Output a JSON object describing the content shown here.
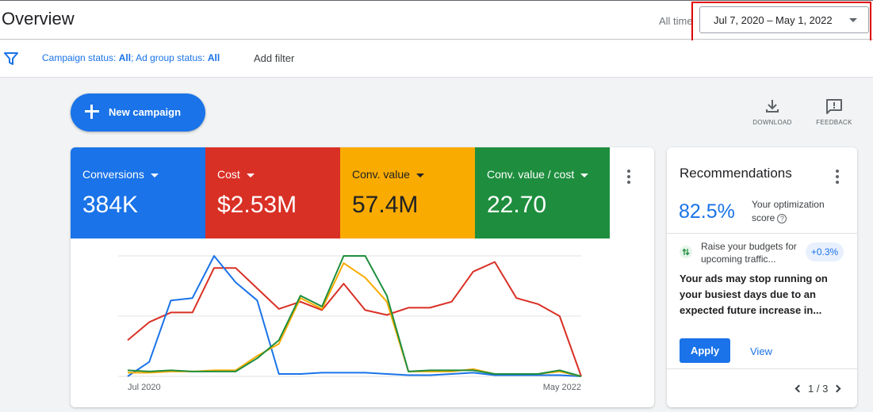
{
  "header": {
    "title": "Overview",
    "all_time_label": "All time",
    "date_range": "Jul 7, 2020 – May 1, 2022"
  },
  "filters": {
    "campaign_status_label": "Campaign status:",
    "campaign_status_value": "All",
    "separator": ";",
    "ad_group_status_label": "Ad group status:",
    "ad_group_status_value": "All",
    "add_filter": "Add filter"
  },
  "actions": {
    "new_campaign": "New campaign",
    "download": "DOWNLOAD",
    "feedback": "FEEDBACK"
  },
  "metrics": [
    {
      "label": "Conversions",
      "value": "384K",
      "color": "#1a73e8"
    },
    {
      "label": "Cost",
      "value": "$2.53M",
      "color": "#d93025"
    },
    {
      "label": "Conv. value",
      "value": "57.4M",
      "color": "#f9ab00"
    },
    {
      "label": "Conv. value / cost",
      "value": "22.70",
      "color": "#1e8e3e"
    }
  ],
  "chart_data": {
    "type": "line",
    "x_tick_labels": [
      "Jul 2020",
      "May 2022"
    ],
    "ylim": [
      0,
      100
    ],
    "grid": true,
    "series": [
      {
        "color": "#d93025",
        "values": [
          30,
          45,
          53,
          53,
          90,
          90,
          73,
          56,
          62,
          55,
          77,
          55,
          51,
          57,
          57,
          62,
          87,
          95,
          65,
          60,
          50,
          0
        ]
      },
      {
        "color": "#1a73e8",
        "values": [
          0,
          12,
          63,
          65,
          100,
          78,
          63,
          2,
          2,
          3,
          3,
          3,
          2,
          1,
          1,
          2,
          3,
          1,
          1,
          1,
          1,
          0
        ]
      },
      {
        "color": "#f9ab00",
        "values": [
          3,
          3,
          4,
          4,
          5,
          5,
          17,
          27,
          65,
          56,
          94,
          82,
          62,
          4,
          4,
          4,
          6,
          2,
          2,
          2,
          4,
          0
        ]
      },
      {
        "color": "#1e8e3e",
        "values": [
          5,
          4,
          5,
          4,
          4,
          4,
          15,
          30,
          67,
          58,
          100,
          100,
          67,
          4,
          5,
          5,
          5,
          2,
          2,
          2,
          5,
          0
        ]
      }
    ]
  },
  "recommendations": {
    "title": "Recommendations",
    "score": "82.5%",
    "score_label": "Your optimization score",
    "help": "?",
    "item_title": "Raise your budgets for upcoming traffic...",
    "badge": "+0.3%",
    "description": "Your ads may stop running on your busiest days due to an expected future increase in...",
    "apply": "Apply",
    "view": "View",
    "pager": "1 / 3"
  }
}
